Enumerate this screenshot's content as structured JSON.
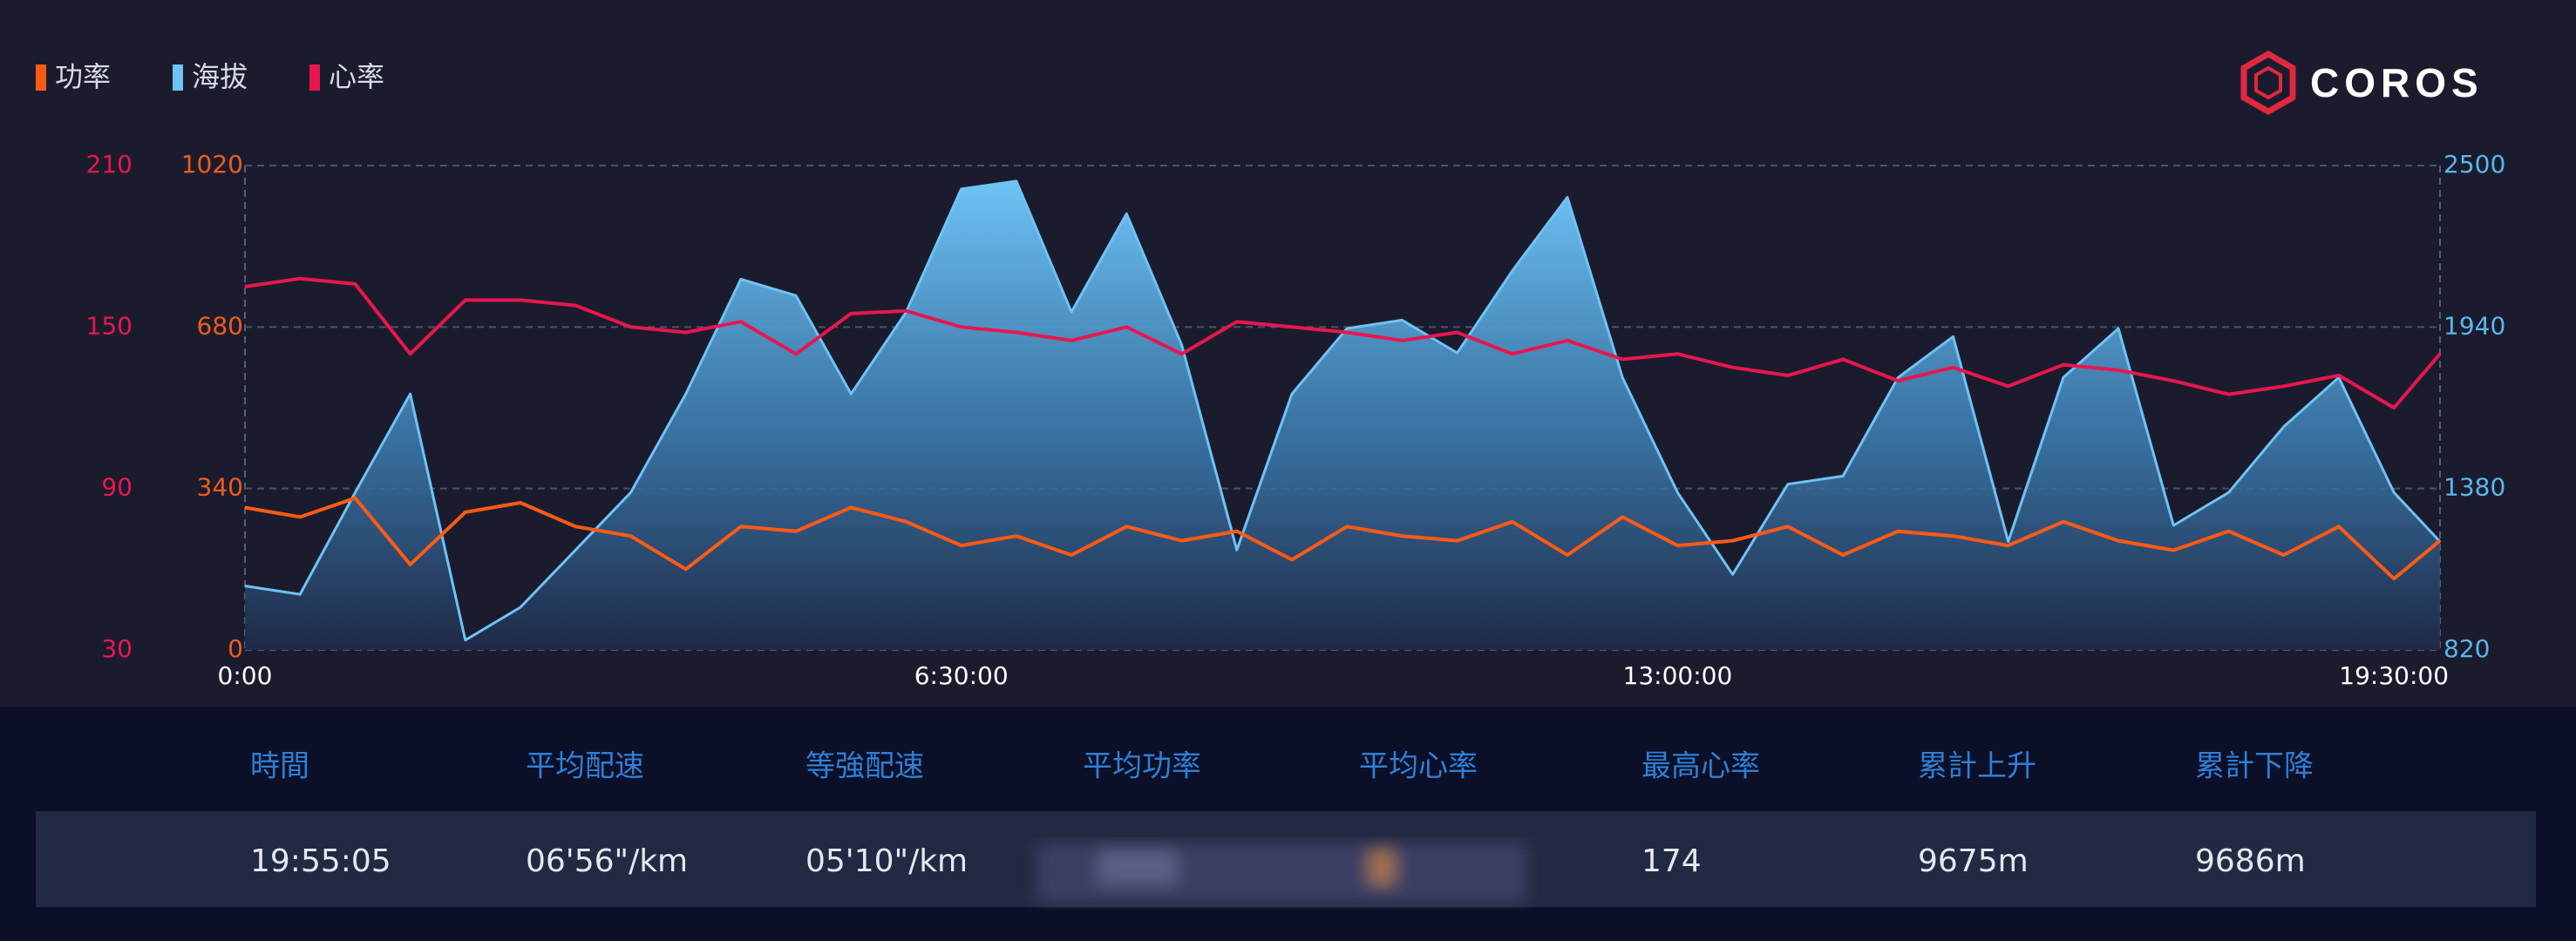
{
  "chart_data": {
    "type": "line",
    "x": [
      0,
      0.5,
      1,
      1.5,
      2,
      2.5,
      3,
      3.5,
      4,
      4.5,
      5,
      5.5,
      6,
      6.5,
      7,
      7.5,
      8,
      8.5,
      9,
      9.5,
      10,
      10.5,
      11,
      11.5,
      12,
      12.5,
      13,
      13.5,
      14,
      14.5,
      15,
      15.5,
      16,
      16.5,
      17,
      17.5,
      18,
      18.5,
      19,
      19.5,
      19.918
    ],
    "xlim": [
      0,
      19.918
    ],
    "xticks": [
      {
        "value": 0,
        "label": "0:00"
      },
      {
        "value": 6.5,
        "label": "6:30:00"
      },
      {
        "value": 13,
        "label": "13:00:00"
      },
      {
        "value": 19.5,
        "label": "19:30:00"
      }
    ],
    "ylim": [
      0,
      1020
    ],
    "yticks": [
      0,
      340,
      680,
      1020
    ],
    "y2lim": [
      820,
      2500
    ],
    "y2ticks": [
      820,
      1380,
      1940,
      2500
    ],
    "y3lim": [
      30,
      210
    ],
    "y3ticks": [
      30,
      90,
      150,
      210
    ],
    "grid": true,
    "legend": "top-left",
    "series": [
      {
        "name": "功率",
        "color": "#ff5a14",
        "axis": "y",
        "values": [
          300,
          280,
          320,
          180,
          290,
          310,
          260,
          240,
          170,
          260,
          250,
          300,
          270,
          220,
          240,
          200,
          260,
          230,
          250,
          190,
          260,
          240,
          230,
          270,
          200,
          280,
          220,
          230,
          260,
          200,
          250,
          240,
          220,
          270,
          230,
          210,
          250,
          200,
          260,
          150,
          230
        ]
      },
      {
        "name": "海拔",
        "color": "#6ec3f5",
        "axis": "y2",
        "values": [
          1042,
          1013,
          1366,
          1708,
          854,
          968,
          1167,
          1366,
          1708,
          2106,
          2049,
          1708,
          1992,
          2419,
          2446,
          1992,
          2333,
          1878,
          1167,
          1708,
          1935,
          1964,
          1850,
          2135,
          2390,
          1765,
          1366,
          1082,
          1395,
          1423,
          1765,
          1907,
          1196,
          1765,
          1935,
          1252,
          1366,
          1594,
          1765,
          1366,
          1196
        ]
      },
      {
        "name": "心率",
        "color": "#e8164e",
        "axis": "y3",
        "values": [
          165,
          168,
          166,
          140,
          160,
          160,
          158,
          150,
          148,
          152,
          140,
          155,
          156,
          150,
          148,
          145,
          150,
          140,
          152,
          150,
          148,
          145,
          148,
          140,
          145,
          138,
          140,
          135,
          132,
          138,
          130,
          135,
          128,
          136,
          134,
          130,
          125,
          128,
          132,
          120,
          140
        ]
      }
    ]
  },
  "logo": "COROS",
  "table": {
    "headers": [
      "時間",
      "平均配速",
      "等強配速",
      "平均功率",
      "平均心率",
      "最高心率",
      "累計上升",
      "累計下降"
    ],
    "rows": [
      [
        "19:55:05",
        "06'56\"/km",
        "05'10\"/km",
        null,
        null,
        "174",
        "9675m",
        "9686m"
      ]
    ]
  }
}
